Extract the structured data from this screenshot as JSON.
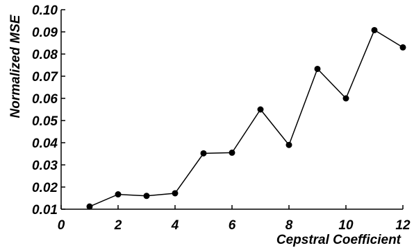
{
  "chart_data": {
    "type": "line",
    "xlabel": "Cepstral Coefficient",
    "ylabel": "Normalized MSE",
    "xlim": [
      0,
      12
    ],
    "ylim": [
      0.01,
      0.1
    ],
    "xticks": [
      "0",
      "2",
      "4",
      "6",
      "8",
      "10",
      "12"
    ],
    "yticks": [
      "0.01",
      "0.02",
      "0.03",
      "0.04",
      "0.05",
      "0.06",
      "0.07",
      "0.08",
      "0.09",
      "0.10"
    ],
    "grid": false,
    "series": [
      {
        "x": [
          1,
          2,
          3,
          4,
          5,
          6,
          7,
          8,
          9,
          10,
          11,
          12
        ],
        "values": [
          0.0112,
          0.0167,
          0.016,
          0.0172,
          0.0352,
          0.0355,
          0.055,
          0.039,
          0.0733,
          0.06,
          0.0908,
          0.083
        ],
        "color": "#000000",
        "marker": "circle"
      }
    ]
  }
}
